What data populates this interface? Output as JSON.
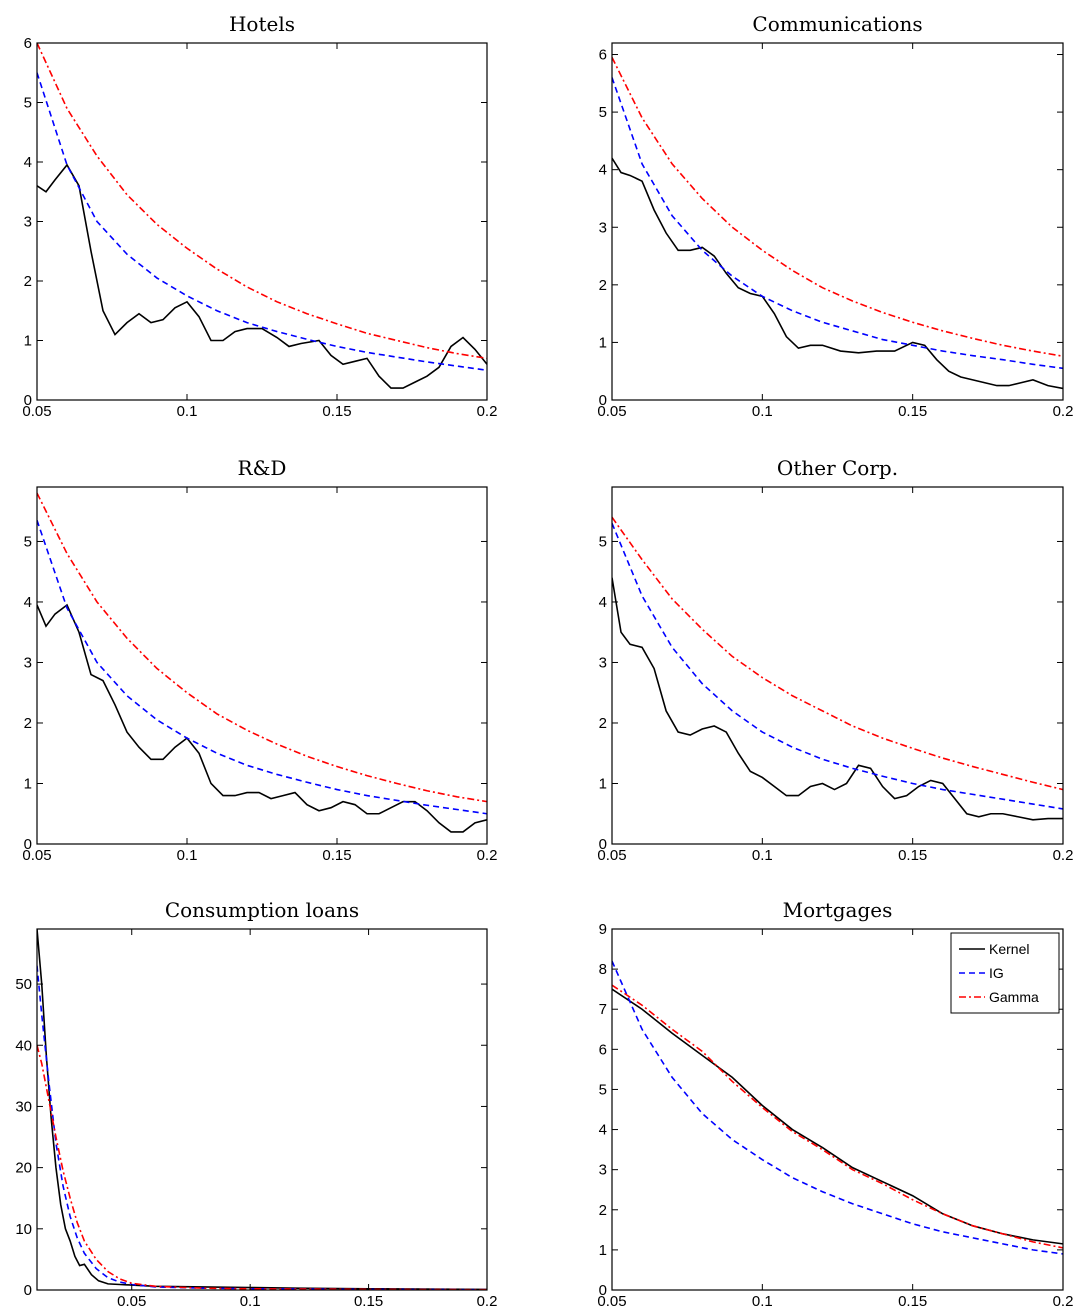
{
  "series_styles": [
    {
      "key": "kernel",
      "color": "#000000",
      "dash": ""
    },
    {
      "key": "ig",
      "color": "#0000ff",
      "dash": "6,4"
    },
    {
      "key": "gamma",
      "color": "#ff0000",
      "dash": "7,3,2,3"
    }
  ],
  "legend": {
    "entries": [
      "Kernel",
      "IG",
      "Gamma"
    ],
    "placement": "top-right",
    "panel": 5
  },
  "chart_data": [
    {
      "type": "line",
      "title": "Hotels",
      "xlim": [
        0.05,
        0.2
      ],
      "ylim": [
        0,
        6
      ],
      "xticks": [
        0.05,
        0.1,
        0.15,
        0.2
      ],
      "xtick_labels": [
        "0.05",
        "0.1",
        "0.15",
        "0.2"
      ],
      "yticks": [
        0,
        1,
        2,
        3,
        4,
        5,
        6
      ],
      "ytick_labels": [
        "0",
        "1",
        "2",
        "3",
        "4",
        "5",
        "6"
      ],
      "series": [
        {
          "key": "kernel",
          "x": [
            0.05,
            0.053,
            0.056,
            0.06,
            0.064,
            0.068,
            0.072,
            0.076,
            0.08,
            0.084,
            0.088,
            0.092,
            0.096,
            0.1,
            0.104,
            0.108,
            0.112,
            0.116,
            0.12,
            0.125,
            0.13,
            0.134,
            0.138,
            0.144,
            0.148,
            0.152,
            0.156,
            0.16,
            0.164,
            0.168,
            0.172,
            0.176,
            0.18,
            0.184,
            0.188,
            0.192,
            0.196,
            0.2
          ],
          "y": [
            3.6,
            3.5,
            3.7,
            3.95,
            3.6,
            2.5,
            1.5,
            1.1,
            1.3,
            1.45,
            1.3,
            1.35,
            1.55,
            1.65,
            1.4,
            1.0,
            1.0,
            1.15,
            1.2,
            1.2,
            1.05,
            0.9,
            0.95,
            1.0,
            0.75,
            0.6,
            0.65,
            0.7,
            0.4,
            0.2,
            0.2,
            0.3,
            0.4,
            0.55,
            0.9,
            1.05,
            0.85,
            0.6
          ]
        },
        {
          "key": "ig",
          "x": [
            0.05,
            0.06,
            0.07,
            0.08,
            0.09,
            0.1,
            0.11,
            0.12,
            0.13,
            0.14,
            0.15,
            0.16,
            0.17,
            0.18,
            0.19,
            0.2
          ],
          "y": [
            5.5,
            3.95,
            3.0,
            2.45,
            2.05,
            1.75,
            1.5,
            1.3,
            1.15,
            1.02,
            0.9,
            0.8,
            0.72,
            0.64,
            0.57,
            0.5
          ]
        },
        {
          "key": "gamma",
          "x": [
            0.05,
            0.06,
            0.07,
            0.08,
            0.09,
            0.1,
            0.11,
            0.12,
            0.13,
            0.14,
            0.15,
            0.16,
            0.17,
            0.18,
            0.19,
            0.2
          ],
          "y": [
            6.0,
            4.9,
            4.1,
            3.45,
            2.95,
            2.55,
            2.2,
            1.9,
            1.65,
            1.45,
            1.28,
            1.12,
            1.0,
            0.88,
            0.78,
            0.7
          ]
        }
      ]
    },
    {
      "type": "line",
      "title": "Communications",
      "xlim": [
        0.05,
        0.2
      ],
      "ylim": [
        0,
        6.2
      ],
      "xticks": [
        0.05,
        0.1,
        0.15,
        0.2
      ],
      "xtick_labels": [
        "0.05",
        "0.1",
        "0.15",
        "0.2"
      ],
      "yticks": [
        0,
        1,
        2,
        3,
        4,
        5,
        6
      ],
      "ytick_labels": [
        "0",
        "1",
        "2",
        "3",
        "4",
        "5",
        "6"
      ],
      "series": [
        {
          "key": "kernel",
          "x": [
            0.05,
            0.053,
            0.056,
            0.06,
            0.064,
            0.068,
            0.072,
            0.076,
            0.08,
            0.084,
            0.088,
            0.092,
            0.096,
            0.1,
            0.104,
            0.108,
            0.112,
            0.116,
            0.12,
            0.126,
            0.132,
            0.138,
            0.144,
            0.15,
            0.154,
            0.158,
            0.162,
            0.166,
            0.17,
            0.174,
            0.178,
            0.182,
            0.186,
            0.19,
            0.195,
            0.2
          ],
          "y": [
            4.2,
            3.95,
            3.9,
            3.8,
            3.3,
            2.9,
            2.6,
            2.6,
            2.65,
            2.5,
            2.2,
            1.95,
            1.85,
            1.8,
            1.5,
            1.1,
            0.9,
            0.95,
            0.95,
            0.85,
            0.82,
            0.85,
            0.85,
            1.0,
            0.95,
            0.7,
            0.5,
            0.4,
            0.35,
            0.3,
            0.25,
            0.25,
            0.3,
            0.35,
            0.25,
            0.2
          ]
        },
        {
          "key": "ig",
          "x": [
            0.05,
            0.06,
            0.07,
            0.08,
            0.09,
            0.1,
            0.11,
            0.12,
            0.13,
            0.14,
            0.15,
            0.16,
            0.17,
            0.18,
            0.19,
            0.2
          ],
          "y": [
            5.6,
            4.1,
            3.2,
            2.6,
            2.15,
            1.8,
            1.55,
            1.35,
            1.2,
            1.05,
            0.95,
            0.85,
            0.77,
            0.7,
            0.62,
            0.55
          ]
        },
        {
          "key": "gamma",
          "x": [
            0.05,
            0.06,
            0.07,
            0.08,
            0.09,
            0.1,
            0.11,
            0.12,
            0.13,
            0.14,
            0.15,
            0.16,
            0.17,
            0.18,
            0.19,
            0.2
          ],
          "y": [
            5.95,
            4.9,
            4.1,
            3.5,
            3.0,
            2.6,
            2.25,
            1.95,
            1.72,
            1.52,
            1.35,
            1.2,
            1.07,
            0.95,
            0.85,
            0.76
          ]
        }
      ]
    },
    {
      "type": "line",
      "title": "R&D",
      "xlim": [
        0.05,
        0.2
      ],
      "ylim": [
        0,
        5.9
      ],
      "xticks": [
        0.05,
        0.1,
        0.15,
        0.2
      ],
      "xtick_labels": [
        "0.05",
        "0.1",
        "0.15",
        "0.2"
      ],
      "yticks": [
        0,
        1,
        2,
        3,
        4,
        5
      ],
      "ytick_labels": [
        "0",
        "1",
        "2",
        "3",
        "4",
        "5"
      ],
      "series": [
        {
          "key": "kernel",
          "x": [
            0.05,
            0.053,
            0.056,
            0.06,
            0.064,
            0.068,
            0.072,
            0.076,
            0.08,
            0.084,
            0.088,
            0.092,
            0.096,
            0.1,
            0.104,
            0.108,
            0.112,
            0.116,
            0.12,
            0.124,
            0.128,
            0.132,
            0.136,
            0.14,
            0.144,
            0.148,
            0.152,
            0.156,
            0.16,
            0.164,
            0.168,
            0.172,
            0.176,
            0.18,
            0.184,
            0.188,
            0.192,
            0.196,
            0.2
          ],
          "y": [
            3.95,
            3.6,
            3.8,
            3.95,
            3.5,
            2.8,
            2.7,
            2.3,
            1.85,
            1.6,
            1.4,
            1.4,
            1.6,
            1.75,
            1.5,
            1.0,
            0.8,
            0.8,
            0.85,
            0.85,
            0.75,
            0.8,
            0.85,
            0.65,
            0.55,
            0.6,
            0.7,
            0.65,
            0.5,
            0.5,
            0.6,
            0.7,
            0.7,
            0.55,
            0.35,
            0.2,
            0.2,
            0.35,
            0.4
          ]
        },
        {
          "key": "ig",
          "x": [
            0.05,
            0.06,
            0.07,
            0.08,
            0.09,
            0.1,
            0.11,
            0.12,
            0.13,
            0.14,
            0.15,
            0.16,
            0.17,
            0.18,
            0.19,
            0.2
          ],
          "y": [
            5.35,
            3.9,
            3.0,
            2.45,
            2.05,
            1.75,
            1.5,
            1.3,
            1.15,
            1.02,
            0.9,
            0.8,
            0.72,
            0.64,
            0.57,
            0.5
          ]
        },
        {
          "key": "gamma",
          "x": [
            0.05,
            0.06,
            0.07,
            0.08,
            0.09,
            0.1,
            0.11,
            0.12,
            0.13,
            0.14,
            0.15,
            0.16,
            0.17,
            0.18,
            0.19,
            0.2
          ],
          "y": [
            5.8,
            4.8,
            4.0,
            3.4,
            2.9,
            2.5,
            2.15,
            1.88,
            1.65,
            1.45,
            1.28,
            1.13,
            1.0,
            0.88,
            0.78,
            0.7
          ]
        }
      ]
    },
    {
      "type": "line",
      "title": "Other Corp.",
      "xlim": [
        0.05,
        0.2
      ],
      "ylim": [
        0,
        5.9
      ],
      "xticks": [
        0.05,
        0.1,
        0.15,
        0.2
      ],
      "xtick_labels": [
        "0.05",
        "0.1",
        "0.15",
        "0.2"
      ],
      "yticks": [
        0,
        1,
        2,
        3,
        4,
        5
      ],
      "ytick_labels": [
        "0",
        "1",
        "2",
        "3",
        "4",
        "5"
      ],
      "series": [
        {
          "key": "kernel",
          "x": [
            0.05,
            0.053,
            0.056,
            0.06,
            0.064,
            0.068,
            0.072,
            0.076,
            0.08,
            0.084,
            0.088,
            0.092,
            0.096,
            0.1,
            0.104,
            0.108,
            0.112,
            0.116,
            0.12,
            0.124,
            0.128,
            0.132,
            0.136,
            0.14,
            0.144,
            0.148,
            0.152,
            0.156,
            0.16,
            0.164,
            0.168,
            0.172,
            0.176,
            0.18,
            0.185,
            0.19,
            0.195,
            0.2
          ],
          "y": [
            4.4,
            3.5,
            3.3,
            3.25,
            2.9,
            2.2,
            1.85,
            1.8,
            1.9,
            1.95,
            1.85,
            1.5,
            1.2,
            1.1,
            0.95,
            0.8,
            0.8,
            0.95,
            1.0,
            0.9,
            1.0,
            1.3,
            1.25,
            0.95,
            0.75,
            0.8,
            0.95,
            1.05,
            1.0,
            0.75,
            0.5,
            0.45,
            0.5,
            0.5,
            0.45,
            0.4,
            0.42,
            0.42
          ]
        },
        {
          "key": "ig",
          "x": [
            0.05,
            0.06,
            0.07,
            0.08,
            0.09,
            0.1,
            0.11,
            0.12,
            0.13,
            0.14,
            0.15,
            0.16,
            0.17,
            0.18,
            0.19,
            0.2
          ],
          "y": [
            5.3,
            4.1,
            3.25,
            2.65,
            2.2,
            1.85,
            1.6,
            1.4,
            1.25,
            1.12,
            1.0,
            0.9,
            0.82,
            0.74,
            0.66,
            0.58
          ]
        },
        {
          "key": "gamma",
          "x": [
            0.05,
            0.06,
            0.07,
            0.08,
            0.09,
            0.1,
            0.11,
            0.12,
            0.13,
            0.14,
            0.15,
            0.16,
            0.17,
            0.18,
            0.19,
            0.2
          ],
          "y": [
            5.4,
            4.7,
            4.05,
            3.55,
            3.1,
            2.75,
            2.45,
            2.2,
            1.95,
            1.75,
            1.58,
            1.42,
            1.28,
            1.15,
            1.02,
            0.9
          ]
        }
      ]
    },
    {
      "type": "line",
      "title": "Consumption loans",
      "xlim": [
        0.01,
        0.2
      ],
      "ylim": [
        0,
        59
      ],
      "xticks": [
        0.05,
        0.1,
        0.15,
        0.2
      ],
      "xtick_labels": [
        "0.05",
        "0.1",
        "0.15",
        "0.2"
      ],
      "yticks": [
        0,
        10,
        20,
        30,
        40,
        50
      ],
      "ytick_labels": [
        "0",
        "10",
        "20",
        "30",
        "40",
        "50"
      ],
      "series": [
        {
          "key": "kernel",
          "x": [
            0.01,
            0.012,
            0.014,
            0.016,
            0.018,
            0.02,
            0.022,
            0.024,
            0.026,
            0.028,
            0.03,
            0.033,
            0.036,
            0.04,
            0.045,
            0.05,
            0.06,
            0.08,
            0.1,
            0.12,
            0.15,
            0.2
          ],
          "y": [
            59,
            50,
            38,
            28,
            20,
            14,
            10,
            8,
            5.5,
            4,
            4.2,
            2.5,
            1.5,
            1.0,
            0.9,
            0.8,
            0.6,
            0.5,
            0.4,
            0.3,
            0.2,
            0.1
          ]
        },
        {
          "key": "ig",
          "x": [
            0.01,
            0.012,
            0.015,
            0.018,
            0.021,
            0.024,
            0.027,
            0.03,
            0.035,
            0.04,
            0.045,
            0.05,
            0.06,
            0.08,
            0.1,
            0.15,
            0.2
          ],
          "y": [
            53,
            45,
            34,
            24,
            17,
            12,
            8.5,
            6,
            3.5,
            2.0,
            1.3,
            0.9,
            0.5,
            0.3,
            0.2,
            0.1,
            0.05
          ]
        },
        {
          "key": "gamma",
          "x": [
            0.01,
            0.012,
            0.015,
            0.018,
            0.021,
            0.024,
            0.027,
            0.03,
            0.035,
            0.04,
            0.045,
            0.05,
            0.06,
            0.08,
            0.1,
            0.15,
            0.2
          ],
          "y": [
            40,
            37,
            31,
            25,
            19.5,
            15,
            11,
            8,
            5,
            3.0,
            1.8,
            1.1,
            0.6,
            0.3,
            0.2,
            0.1,
            0.05
          ]
        }
      ]
    },
    {
      "type": "line",
      "title": "Mortgages",
      "xlim": [
        0.05,
        0.2
      ],
      "ylim": [
        0,
        9
      ],
      "xticks": [
        0.05,
        0.1,
        0.15,
        0.2
      ],
      "xtick_labels": [
        "0.05",
        "0.1",
        "0.15",
        "0.2"
      ],
      "yticks": [
        0,
        1,
        2,
        3,
        4,
        5,
        6,
        7,
        8,
        9
      ],
      "ytick_labels": [
        "0",
        "1",
        "2",
        "3",
        "4",
        "5",
        "6",
        "7",
        "8",
        "9"
      ],
      "series": [
        {
          "key": "kernel",
          "x": [
            0.05,
            0.06,
            0.07,
            0.08,
            0.09,
            0.1,
            0.11,
            0.12,
            0.13,
            0.14,
            0.15,
            0.16,
            0.17,
            0.18,
            0.19,
            0.2
          ],
          "y": [
            7.5,
            7.0,
            6.4,
            5.85,
            5.3,
            4.6,
            4.0,
            3.55,
            3.05,
            2.7,
            2.35,
            1.9,
            1.6,
            1.4,
            1.25,
            1.15
          ]
        },
        {
          "key": "ig",
          "x": [
            0.05,
            0.06,
            0.07,
            0.08,
            0.09,
            0.1,
            0.11,
            0.12,
            0.13,
            0.14,
            0.15,
            0.16,
            0.17,
            0.18,
            0.19,
            0.2
          ],
          "y": [
            8.2,
            6.5,
            5.3,
            4.4,
            3.75,
            3.25,
            2.8,
            2.45,
            2.15,
            1.9,
            1.65,
            1.45,
            1.3,
            1.15,
            1.0,
            0.9
          ]
        },
        {
          "key": "gamma",
          "x": [
            0.05,
            0.06,
            0.07,
            0.08,
            0.09,
            0.1,
            0.11,
            0.12,
            0.13,
            0.14,
            0.15,
            0.16,
            0.17,
            0.18,
            0.19,
            0.2
          ],
          "y": [
            7.6,
            7.1,
            6.5,
            5.95,
            5.2,
            4.55,
            3.95,
            3.5,
            3.0,
            2.65,
            2.25,
            1.9,
            1.6,
            1.4,
            1.2,
            1.05
          ]
        }
      ]
    }
  ]
}
